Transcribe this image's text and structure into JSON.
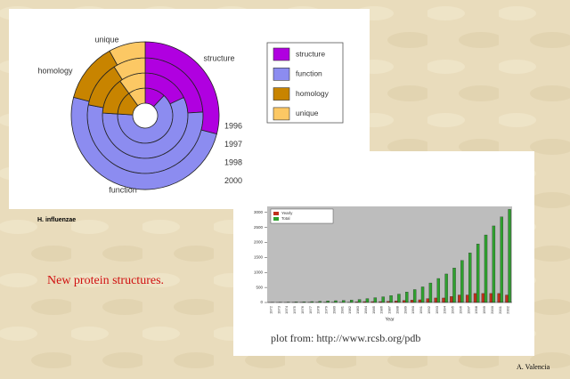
{
  "slide": {
    "caption": "New protein structures.",
    "organism": "H. influenzae",
    "source": "plot from: http://www.rcsb.org/pdb",
    "author": "A. Valencia"
  },
  "chart_data": [
    {
      "type": "pie",
      "categories": [
        "structure",
        "function",
        "homology",
        "unique"
      ],
      "colors": [
        "#b000e0",
        "#8c8cf0",
        "#c88400",
        "#fcc864"
      ],
      "series": [
        {
          "name": "1996",
          "values": [
            12,
            64,
            14,
            10
          ]
        },
        {
          "name": "1997",
          "values": [
            18,
            58,
            14,
            10
          ]
        },
        {
          "name": "1998",
          "values": [
            24,
            54,
            13,
            9
          ]
        },
        {
          "name": "2000",
          "values": [
            29,
            50,
            13,
            8
          ]
        }
      ]
    },
    {
      "type": "bar",
      "x_label": "Year",
      "categories": [
        "1972",
        "1973",
        "1974",
        "1975",
        "1976",
        "1977",
        "1978",
        "1979",
        "1980",
        "1981",
        "1982",
        "1983",
        "1984",
        "1985",
        "1986",
        "1987",
        "1988",
        "1989",
        "1990",
        "1991",
        "1992",
        "1993",
        "1994",
        "1995",
        "1996",
        "1997",
        "1998",
        "1999",
        "2000",
        "2001",
        "2002"
      ],
      "series": [
        {
          "name": "Yearly",
          "color": "#c0301c",
          "values": [
            2,
            2,
            3,
            5,
            5,
            5,
            10,
            10,
            10,
            10,
            10,
            20,
            30,
            30,
            30,
            40,
            50,
            70,
            80,
            90,
            130,
            150,
            150,
            200,
            250,
            250,
            300,
            300,
            300,
            300,
            250
          ]
        },
        {
          "name": "Total",
          "color": "#2ea02e",
          "values": [
            10,
            12,
            15,
            20,
            25,
            30,
            40,
            50,
            60,
            70,
            80,
            100,
            130,
            160,
            190,
            230,
            280,
            350,
            430,
            520,
            650,
            800,
            950,
            1150,
            1400,
            1650,
            1950,
            2250,
            2550,
            2850,
            3100
          ]
        }
      ],
      "ylim": [
        0,
        3200
      ],
      "yticks": [
        0,
        500,
        1000,
        1500,
        2000,
        2500,
        3000
      ]
    }
  ]
}
